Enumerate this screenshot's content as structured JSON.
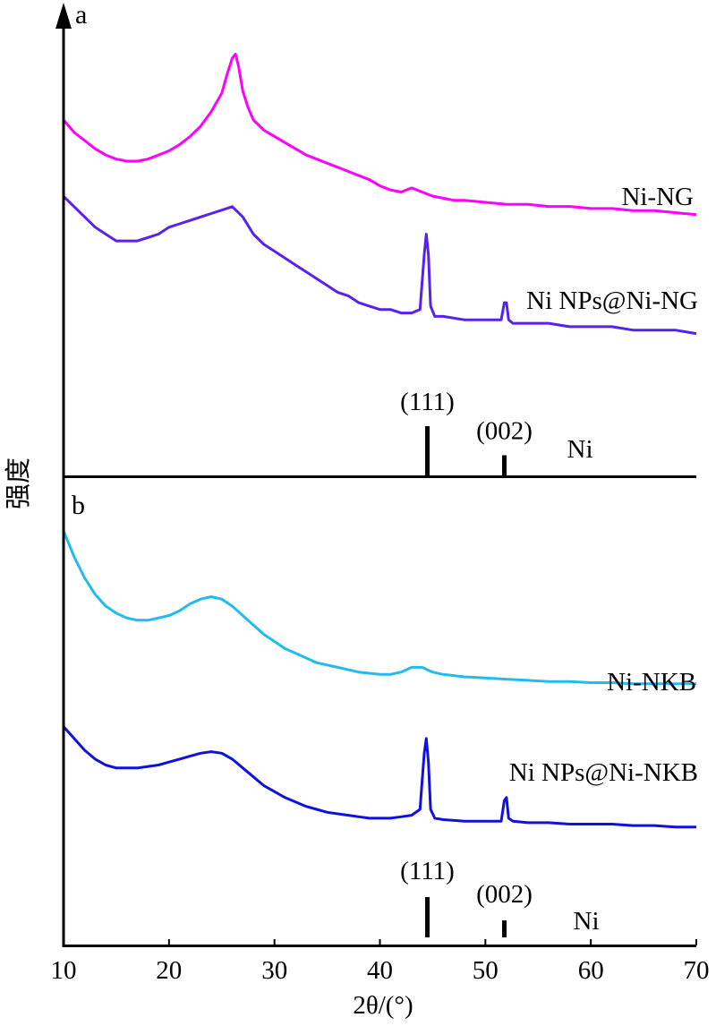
{
  "chart_data": {
    "type": "line",
    "xlabel": "2θ/(°)",
    "ylabel": "强度",
    "xlim": [
      10,
      70
    ],
    "xticks": [
      "10",
      "20",
      "30",
      "40",
      "50",
      "60",
      "70"
    ],
    "grid": false,
    "panels": [
      {
        "label": "a",
        "series": [
          {
            "name": "Ni-NG",
            "color": "#ff00ff",
            "x": [
              10,
              11,
              12,
              13,
              14,
              15,
              16,
              17,
              18,
              19,
              20,
              21,
              22,
              23,
              24,
              25,
              25.5,
              26,
              26.3,
              26.6,
              27,
              27.5,
              28,
              29,
              30,
              31,
              32,
              33,
              34,
              35,
              36,
              37,
              38,
              39,
              40,
              41,
              42,
              43,
              44,
              45,
              46,
              47,
              48,
              50,
              52,
              54,
              56,
              58,
              60,
              62,
              64,
              66,
              68,
              70
            ],
            "y": [
              0.7,
              0.64,
              0.6,
              0.56,
              0.53,
              0.51,
              0.5,
              0.5,
              0.51,
              0.53,
              0.55,
              0.58,
              0.62,
              0.67,
              0.74,
              0.83,
              0.92,
              1.0,
              1.02,
              0.96,
              0.84,
              0.76,
              0.7,
              0.65,
              0.62,
              0.59,
              0.56,
              0.53,
              0.51,
              0.49,
              0.47,
              0.45,
              0.43,
              0.41,
              0.38,
              0.36,
              0.35,
              0.37,
              0.35,
              0.33,
              0.32,
              0.31,
              0.31,
              0.3,
              0.29,
              0.29,
              0.28,
              0.28,
              0.27,
              0.27,
              0.26,
              0.26,
              0.25,
              0.24
            ]
          },
          {
            "name": "Ni NPs@Ni-NG",
            "color": "#5522ee",
            "x": [
              10,
              11,
              12,
              13,
              14,
              15,
              16,
              17,
              18,
              19,
              20,
              21,
              22,
              23,
              24,
              25,
              26,
              27,
              28,
              29,
              30,
              31,
              32,
              33,
              34,
              35,
              36,
              37,
              38,
              39,
              40,
              41,
              42,
              43,
              43.8,
              44.2,
              44.4,
              44.6,
              44.8,
              45.2,
              46,
              48,
              50,
              51.5,
              51.8,
              52,
              52.2,
              52.6,
              54,
              56,
              58,
              60,
              62,
              64,
              66,
              68,
              70
            ],
            "y": [
              0.55,
              0.52,
              0.49,
              0.46,
              0.44,
              0.42,
              0.42,
              0.42,
              0.43,
              0.44,
              0.46,
              0.47,
              0.48,
              0.49,
              0.5,
              0.51,
              0.52,
              0.49,
              0.44,
              0.41,
              0.39,
              0.37,
              0.35,
              0.33,
              0.31,
              0.29,
              0.27,
              0.26,
              0.24,
              0.23,
              0.22,
              0.22,
              0.21,
              0.21,
              0.22,
              0.38,
              0.44,
              0.38,
              0.23,
              0.2,
              0.2,
              0.19,
              0.19,
              0.19,
              0.24,
              0.24,
              0.19,
              0.18,
              0.18,
              0.18,
              0.17,
              0.17,
              0.17,
              0.16,
              0.16,
              0.16,
              0.15
            ]
          }
        ],
        "reference": {
          "name": "Ni",
          "peaks": [
            {
              "x": 44.5,
              "intensity": 1.0,
              "label": "(111)"
            },
            {
              "x": 51.8,
              "intensity": 0.42,
              "label": "(002)"
            }
          ]
        }
      },
      {
        "label": "b",
        "series": [
          {
            "name": "Ni-NKB",
            "color": "#22bbee",
            "x": [
              10,
              11,
              12,
              13,
              14,
              15,
              16,
              17,
              18,
              19,
              20,
              21,
              22,
              23,
              24,
              25,
              26,
              27,
              28,
              29,
              30,
              31,
              32,
              33,
              34,
              35,
              36,
              37,
              38,
              39,
              40,
              41,
              42,
              43,
              44,
              45,
              46,
              47,
              48,
              50,
              52,
              54,
              56,
              58,
              60,
              62,
              64,
              66,
              68,
              70
            ],
            "y": [
              0.97,
              0.86,
              0.77,
              0.7,
              0.65,
              0.62,
              0.6,
              0.59,
              0.59,
              0.6,
              0.61,
              0.63,
              0.66,
              0.68,
              0.69,
              0.68,
              0.65,
              0.61,
              0.57,
              0.53,
              0.5,
              0.47,
              0.45,
              0.43,
              0.41,
              0.4,
              0.39,
              0.38,
              0.37,
              0.365,
              0.36,
              0.36,
              0.37,
              0.39,
              0.39,
              0.37,
              0.36,
              0.355,
              0.35,
              0.345,
              0.34,
              0.335,
              0.33,
              0.33,
              0.325,
              0.325,
              0.32,
              0.32,
              0.32,
              0.32
            ]
          },
          {
            "name": "Ni NPs@Ni-NKB",
            "color": "#1111dd",
            "x": [
              10,
              11,
              12,
              13,
              14,
              15,
              16,
              17,
              18,
              19,
              20,
              21,
              22,
              23,
              24,
              25,
              26,
              27,
              28,
              29,
              30,
              31,
              32,
              33,
              34,
              35,
              36,
              37,
              38,
              39,
              40,
              41,
              42,
              43,
              43.8,
              44.2,
              44.4,
              44.6,
              44.8,
              45.2,
              46,
              48,
              50,
              51.5,
              51.8,
              52,
              52.2,
              52.6,
              54,
              56,
              58,
              60,
              62,
              64,
              66,
              68,
              70
            ],
            "y": [
              0.48,
              0.44,
              0.4,
              0.37,
              0.35,
              0.34,
              0.34,
              0.34,
              0.345,
              0.35,
              0.36,
              0.37,
              0.38,
              0.39,
              0.395,
              0.39,
              0.37,
              0.34,
              0.31,
              0.28,
              0.26,
              0.24,
              0.225,
              0.21,
              0.2,
              0.19,
              0.185,
              0.18,
              0.175,
              0.17,
              0.17,
              0.17,
              0.175,
              0.18,
              0.2,
              0.39,
              0.44,
              0.36,
              0.2,
              0.17,
              0.165,
              0.16,
              0.16,
              0.16,
              0.23,
              0.24,
              0.17,
              0.16,
              0.155,
              0.155,
              0.15,
              0.15,
              0.15,
              0.145,
              0.145,
              0.14,
              0.14
            ]
          }
        ],
        "reference": {
          "name": "Ni",
          "peaks": [
            {
              "x": 44.5,
              "intensity": 1.0,
              "label": "(111)"
            },
            {
              "x": 51.8,
              "intensity": 0.42,
              "label": "(002)"
            }
          ]
        }
      }
    ]
  }
}
